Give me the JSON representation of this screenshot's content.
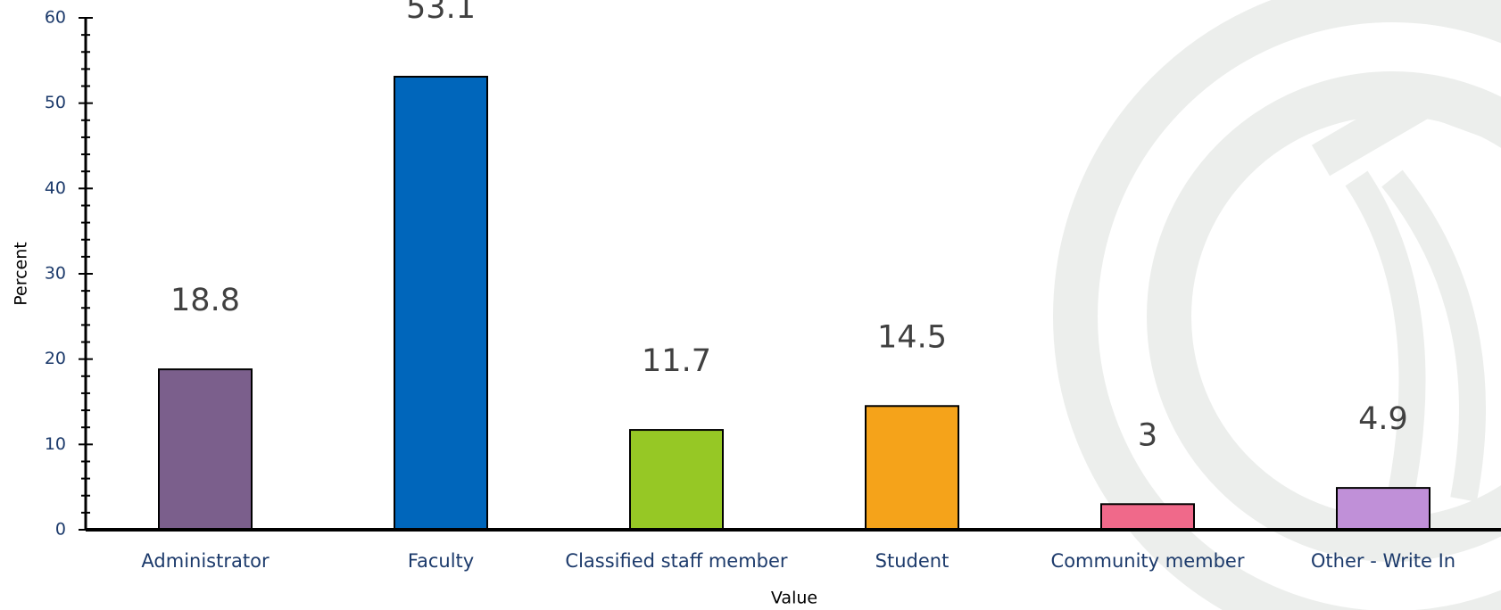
{
  "chart_data": {
    "type": "bar",
    "x_label": "Value",
    "y_label": "Percent",
    "categories": [
      "Administrator",
      "Faculty",
      "Classified staff member",
      "Student",
      "Community member",
      "Other - Write In"
    ],
    "values": [
      18.8,
      53.1,
      11.7,
      14.5,
      3,
      4.9
    ],
    "colors": [
      "#7b5f8c",
      "#0066bb",
      "#96c825",
      "#f5a31a",
      "#f0698a",
      "#c090d8"
    ],
    "ylim": [
      0,
      60
    ],
    "yticks": [
      0,
      10,
      20,
      30,
      40,
      50,
      60
    ]
  }
}
